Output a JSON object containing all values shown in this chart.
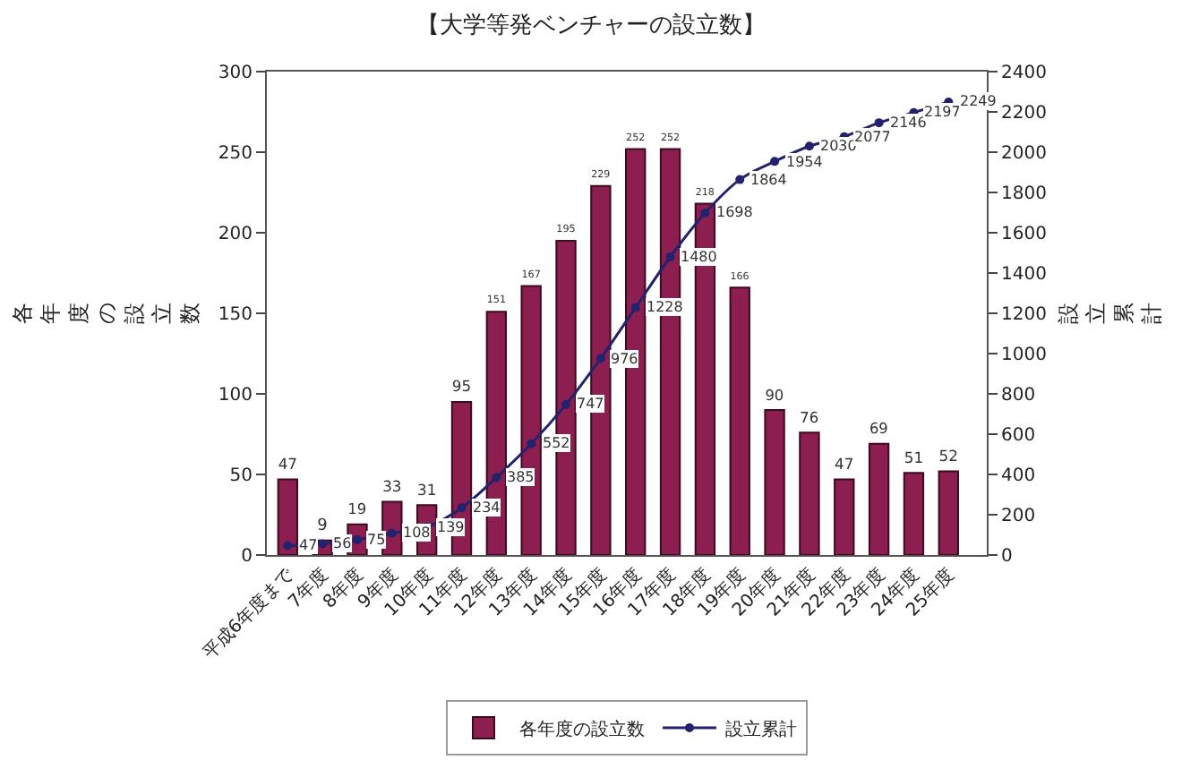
{
  "chart_data": {
    "type": "bar",
    "title": "【大学等発ベンチャーの設立数】",
    "ylabel": "各年度の設立数",
    "y2label": "設立累計",
    "categories": [
      "平成6年度まで",
      "7年度",
      "8年度",
      "9年度",
      "10年度",
      "11年度",
      "12年度",
      "13年度",
      "14年度",
      "15年度",
      "16年度",
      "17年度",
      "18年度",
      "19年度",
      "20年度",
      "21年度",
      "22年度",
      "23年度",
      "24年度",
      "25年度"
    ],
    "series": [
      {
        "name": "各年度の設立数",
        "color": "#8c1f4f",
        "values": [
          47,
          9,
          19,
          33,
          31,
          95,
          151,
          167,
          195,
          229,
          252,
          252,
          218,
          166,
          90,
          76,
          47,
          69,
          51,
          52
        ]
      },
      {
        "name": "設立累計",
        "type": "line",
        "axis": "y2",
        "color": "#22226e",
        "marker": "circle",
        "values": [
          47,
          56,
          75,
          108,
          139,
          234,
          385,
          552,
          747,
          976,
          1228,
          1480,
          1698,
          1864,
          1954,
          2030,
          2077,
          2146,
          2197,
          2249
        ]
      }
    ],
    "ylim": [
      0,
      300
    ],
    "yticks": [
      0,
      50,
      100,
      150,
      200,
      250,
      300
    ],
    "y2lim": [
      0,
      2400
    ],
    "y2ticks": [
      0,
      200,
      400,
      600,
      800,
      1000,
      1200,
      1400,
      1600,
      1800,
      2000,
      2200,
      2400
    ],
    "data_labels": true,
    "legend": "bottom"
  }
}
